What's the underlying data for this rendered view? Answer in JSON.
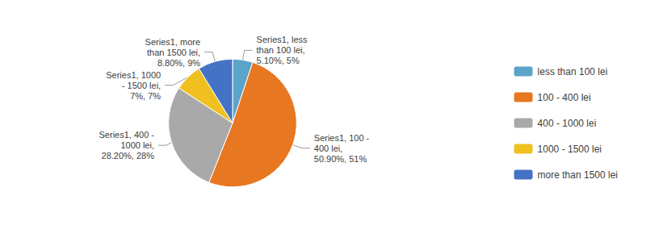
{
  "chart_data": {
    "type": "pie",
    "categories": [
      "less than 100 lei",
      "100 - 400 lei",
      "400 - 1000 lei",
      "1000 - 1500 lei",
      "more than 1500 lei"
    ],
    "values": [
      5.1,
      50.9,
      28.2,
      7.0,
      8.8
    ],
    "value_labels": [
      "Series1, less\nthan 100 lei,\n5.10%, 5%",
      "Series1, 100 -\n400 lei,\n50.90%, 51%",
      "Series1, 400 -\n1000 lei,\n28.20%, 28%",
      "Series1, 1000\n- 1500 lei,\n7%, 7%",
      "Series1, more\nthan 1500 lei,\n8.80%, 9%"
    ],
    "colors": [
      "#5BA3C9",
      "#E87722",
      "#A9A9A9",
      "#F0C020",
      "#4472C4"
    ],
    "data_labels": true,
    "legend": "right"
  }
}
